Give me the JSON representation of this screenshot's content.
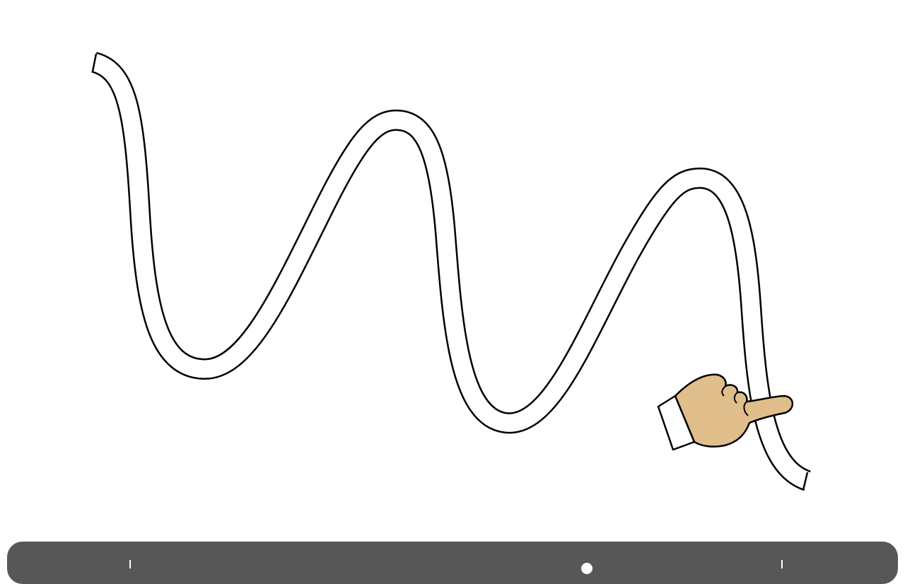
{
  "game": {
    "track_shape": "wavy-ribbon-path",
    "colors": {
      "background": "#ffffff",
      "track_fill": "#ffffff",
      "track_outline": "#000000",
      "hand_skin": "#dfbe8c",
      "cuff": "#ffffff",
      "bottom_bar": "#575757"
    },
    "icons": {
      "pointer": "pointing-hand-icon"
    }
  }
}
